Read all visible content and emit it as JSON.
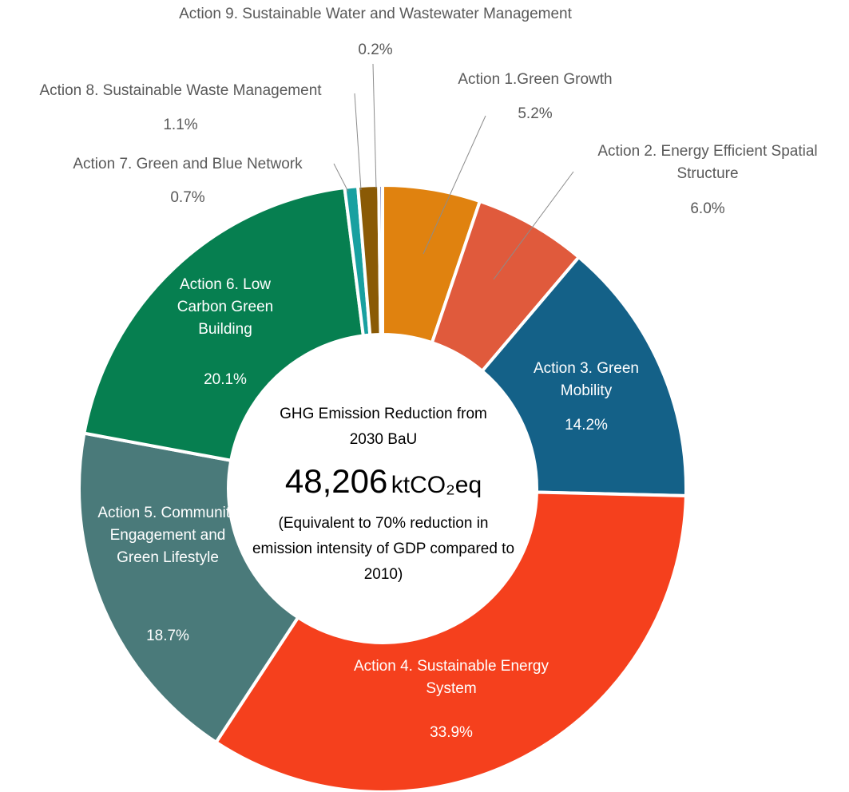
{
  "chart_data": {
    "type": "pie",
    "categories": [
      "Action 1.Green Growth",
      "Action 2. Energy Efficient Spatial Structure",
      "Action 3. Green Mobility",
      "Action 4. Sustainable Energy System",
      "Action 5. Community Engagement and Green Lifestyle",
      "Action 6. Low Carbon Green Building",
      "Action 7. Green and Blue Network",
      "Action 8. Sustainable Waste Management",
      "Action 9. Sustainable Water and Wastewater Management"
    ],
    "values": [
      5.2,
      6.0,
      14.2,
      33.9,
      18.7,
      20.1,
      0.7,
      1.1,
      0.2
    ],
    "value_labels": [
      "5.2%",
      "6.0%",
      "14.2%",
      "33.9%",
      "18.7%",
      "20.1%",
      "0.7%",
      "1.1%",
      "0.2%"
    ],
    "colors": [
      "#e0820f",
      "#e05a3c",
      "#146188",
      "#f5401d",
      "#4a7a7a",
      "#067f50",
      "#18a0a0",
      "#8a5a05",
      "#6d74b4"
    ],
    "center_text": {
      "heading": "GHG Emission Reduction from 2030 BaU",
      "total": "48,206",
      "unit": "ktCO₂eq",
      "note": "(Equivalent to 70% reduction in emission intensity of GDP compared to 2010)"
    }
  }
}
